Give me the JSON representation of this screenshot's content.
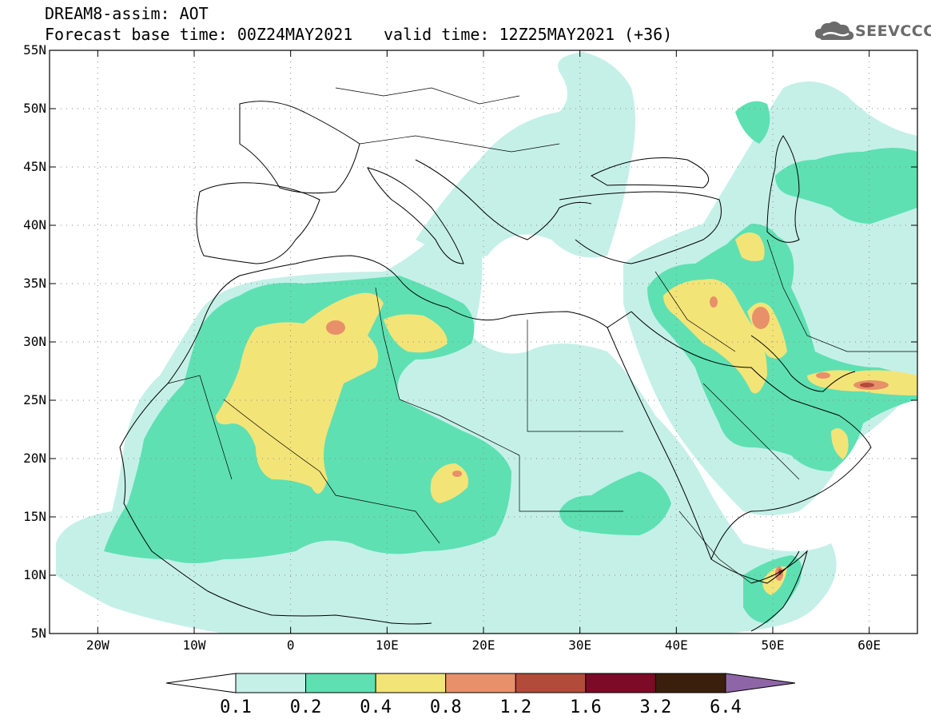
{
  "header": {
    "line1": "DREAM8-assim: AOT",
    "line2": "Forecast base time: 00Z24MAY2021",
    "valid": "valid time: 12Z25MAY2021 (+36)",
    "logo_text": "SEEVCCC",
    "logo_icon": "cloud-logo-icon"
  },
  "axes": {
    "lon_labels": [
      "20W",
      "10W",
      "0",
      "10E",
      "20E",
      "30E",
      "40E",
      "50E",
      "60E"
    ],
    "lat_labels": [
      "55N",
      "50N",
      "45N",
      "40N",
      "35N",
      "30N",
      "25N",
      "20N",
      "15N",
      "10N",
      "5N"
    ]
  },
  "colorbar": {
    "colors": [
      "#c5f0e8",
      "#5ee0b3",
      "#f3e478",
      "#e8906a",
      "#b24b3a",
      "#7d0a26",
      "#3b1f0d"
    ],
    "under_color": "#ffffff",
    "over_color": "#8e66a8",
    "labels": [
      "0.1",
      "0.2",
      "0.4",
      "0.8",
      "1.2",
      "1.6",
      "3.2",
      "6.4"
    ]
  },
  "colors": {
    "aot_0_1": "#c5f0e8",
    "aot_0_2": "#5ee0b3",
    "aot_0_4": "#f3e478",
    "aot_0_8": "#e8906a",
    "aot_1_2": "#b24b3a"
  }
}
